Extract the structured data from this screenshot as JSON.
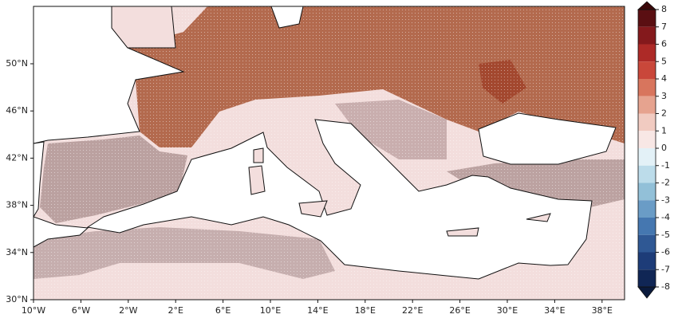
{
  "map": {
    "lat_labels": [
      "50°N",
      "46°N",
      "42°N",
      "38°N",
      "34°N",
      "30°N"
    ],
    "lon_labels": [
      "10°W",
      "6°W",
      "2°W",
      "2°E",
      "6°E",
      "10°E",
      "14°E",
      "18°E",
      "22°E",
      "26°E",
      "30°E",
      "34°E",
      "38°E"
    ]
  },
  "colorbar": {
    "ticks": [
      8,
      7,
      6,
      5,
      4,
      3,
      2,
      1,
      0,
      -1,
      -2,
      -3,
      -4,
      -5,
      -6,
      -7,
      -8
    ],
    "colors": [
      "#5a0f12",
      "#84191c",
      "#ad2a27",
      "#c9473a",
      "#d8755d",
      "#e6a38f",
      "#f1cbc1",
      "#f8e7e5",
      "#e3f1f7",
      "#bcdcea",
      "#92c0d8",
      "#6a9cc6",
      "#4577b0",
      "#2f5894",
      "#1d3c78",
      "#102655"
    ],
    "extend_colors": [
      "#3a0709",
      "#0a1a3c"
    ]
  }
}
